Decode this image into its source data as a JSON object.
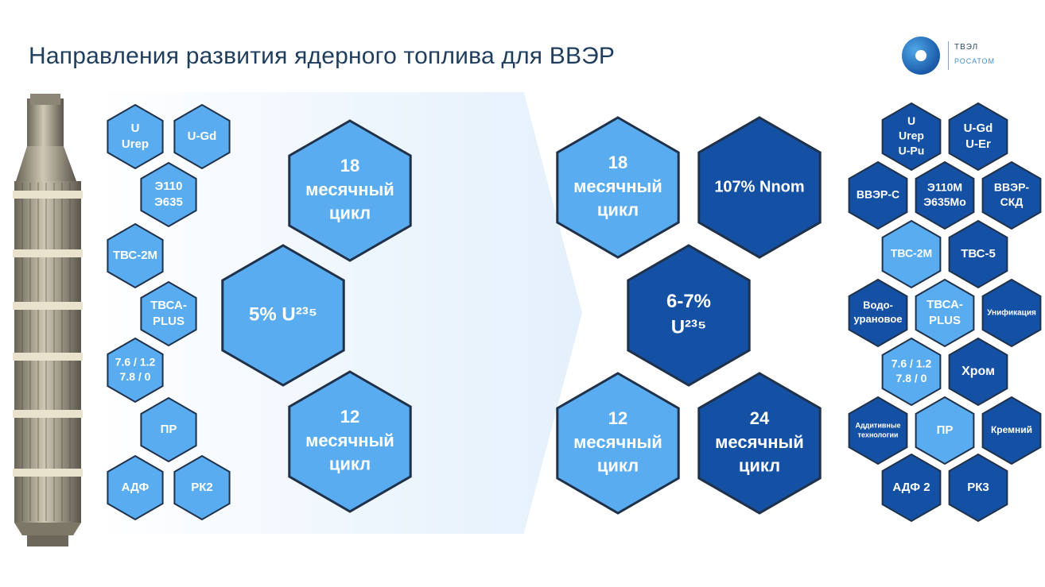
{
  "title": "Направления развития ядерного топлива для ВВЭР",
  "logo": {
    "line1": "ТВЭЛ",
    "line2": "РОСАТОМ"
  },
  "colors": {
    "light": "#5aacf0",
    "dark": "#1450a3",
    "stroke": "#20314a",
    "title": "#1f3d5c"
  },
  "left_small": [
    {
      "id": "u-urep",
      "lines": [
        "U",
        "Urep"
      ]
    },
    {
      "id": "u-gd",
      "lines": [
        "U-Gd"
      ]
    },
    {
      "id": "e110-e635",
      "lines": [
        "Э110",
        "Э635"
      ]
    },
    {
      "id": "tvs-2m",
      "lines": [
        "ТВС-2М"
      ]
    },
    {
      "id": "tvsa-plus",
      "lines": [
        "ТВСА-",
        "PLUS"
      ]
    },
    {
      "id": "ratio",
      "lines": [
        "7.6 / 1.2",
        "7.8 / 0"
      ]
    },
    {
      "id": "pr",
      "lines": [
        "ПР"
      ]
    },
    {
      "id": "adf",
      "lines": [
        "АДФ"
      ]
    },
    {
      "id": "rk2",
      "lines": [
        "РК2"
      ]
    }
  ],
  "left_big": [
    {
      "id": "cycle-18-left",
      "lines": [
        "18",
        "месячный",
        "цикл"
      ]
    },
    {
      "id": "u235-5",
      "lines": [
        "5% U²³⁵"
      ]
    },
    {
      "id": "cycle-12-left",
      "lines": [
        "12",
        "месячный",
        "цикл"
      ]
    }
  ],
  "right_big": [
    {
      "id": "cycle-18-right",
      "lines": [
        "18",
        "месячный",
        "цикл"
      ]
    },
    {
      "id": "power-107",
      "lines": [
        "107% Nnom"
      ]
    },
    {
      "id": "u235-6-7",
      "lines": [
        "6-7%",
        "U²³⁵"
      ]
    },
    {
      "id": "cycle-12-right",
      "lines": [
        "12",
        "месячный",
        "цикл"
      ]
    },
    {
      "id": "cycle-24",
      "lines": [
        "24",
        "месячный",
        "цикл"
      ]
    }
  ],
  "right_small": [
    {
      "id": "u-urep-upu",
      "lines": [
        "U",
        "Urep",
        "U-Pu"
      ]
    },
    {
      "id": "ugd-uer",
      "lines": [
        "U-Gd",
        "U-Er"
      ]
    },
    {
      "id": "vver-s",
      "lines": [
        "ВВЭР-С"
      ]
    },
    {
      "id": "e110m",
      "lines": [
        "Э110М",
        "Э635Мо"
      ]
    },
    {
      "id": "vver-skd",
      "lines": [
        "ВВЭР-",
        "СКД"
      ]
    },
    {
      "id": "tvs-2m-r",
      "lines": [
        "ТВС-2М"
      ]
    },
    {
      "id": "tvs-5",
      "lines": [
        "ТВС-5"
      ]
    },
    {
      "id": "vodo",
      "lines": [
        "Водо-",
        "урановое"
      ]
    },
    {
      "id": "tvsa-plus-r",
      "lines": [
        "ТВСА-",
        "PLUS"
      ]
    },
    {
      "id": "unif",
      "lines": [
        "Унификация"
      ]
    },
    {
      "id": "ratio-r",
      "lines": [
        "7.6 / 1.2",
        "7.8 / 0"
      ]
    },
    {
      "id": "chrom",
      "lines": [
        "Хром"
      ]
    },
    {
      "id": "additive",
      "lines": [
        "Аддитивные",
        "технологии"
      ]
    },
    {
      "id": "pr-r",
      "lines": [
        "ПР"
      ]
    },
    {
      "id": "kremniy",
      "lines": [
        "Кремний"
      ]
    },
    {
      "id": "adf2",
      "lines": [
        "АДФ 2"
      ]
    },
    {
      "id": "rk3",
      "lines": [
        "РК3"
      ]
    }
  ]
}
